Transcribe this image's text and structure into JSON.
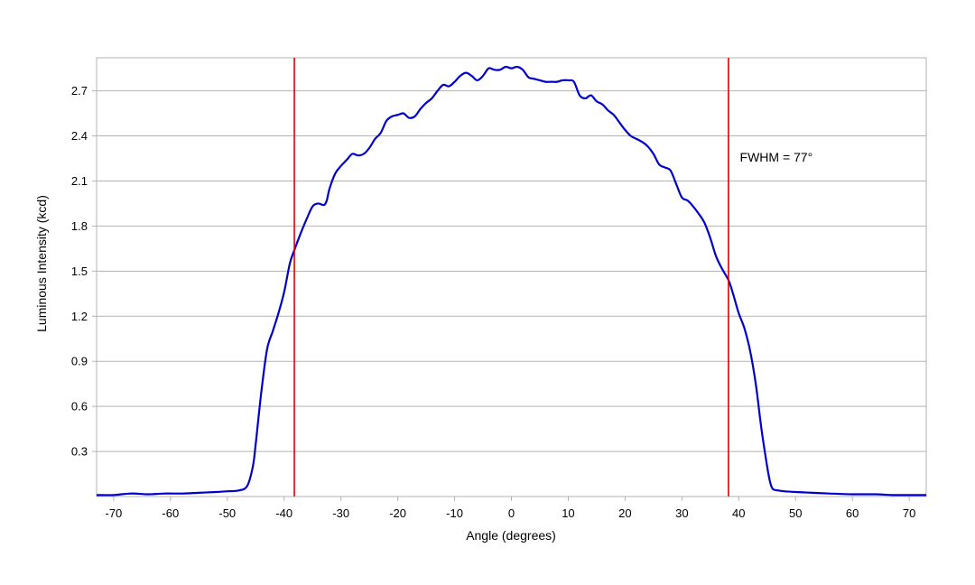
{
  "chart_data": {
    "type": "line",
    "title": "",
    "xlabel": "Angle (degrees)",
    "ylabel": "Luminous Intensity (kcd)",
    "xlim": [
      -73,
      73
    ],
    "ylim": [
      0,
      2.92
    ],
    "x_ticks": [
      -70,
      -60,
      -50,
      -40,
      -30,
      -20,
      -10,
      0,
      10,
      20,
      30,
      40,
      50,
      60,
      70
    ],
    "x_tick_labels": [
      "-70",
      "-60",
      "-50",
      "-40",
      "-30",
      "-20",
      "-10",
      "0",
      "10",
      "20",
      "30",
      "40",
      "50",
      "60",
      "70"
    ],
    "y_ticks": [
      0.3,
      0.6,
      0.9,
      1.2,
      1.5,
      1.8,
      2.1,
      2.4,
      2.7
    ],
    "y_tick_labels": [
      "0.3",
      "0.6",
      "0.9",
      "1.2",
      "1.5",
      "1.8",
      "2.1",
      "2.4",
      "2.7"
    ],
    "grid": "horizontal",
    "colors": {
      "series": "#0000cc",
      "markers": "#dd0000",
      "grid": "#b3b3b3",
      "frame": "#b3b3b3"
    },
    "series": [
      {
        "x": [
          -73,
          -70,
          -67,
          -64,
          -61,
          -58,
          -55,
          -52,
          -50,
          -48,
          -46.5,
          -45.5,
          -45,
          -44,
          -43,
          -42,
          -41,
          -40,
          -39,
          -38.2,
          -37,
          -36,
          -35,
          -34,
          -33,
          -32.5,
          -32,
          -31,
          -30,
          -29,
          -28,
          -27,
          -26,
          -25,
          -24,
          -23,
          -22,
          -21,
          -20,
          -19,
          -18,
          -17,
          -16,
          -15,
          -14,
          -13,
          -12,
          -11,
          -10,
          -9,
          -8,
          -7,
          -6,
          -5,
          -4,
          -3,
          -2,
          -1,
          0,
          1,
          2,
          3,
          4,
          5,
          6,
          7,
          8,
          9,
          10,
          11,
          12,
          13,
          14,
          15,
          16,
          17,
          18,
          19,
          20,
          21,
          22,
          23,
          24,
          25,
          26,
          27,
          28,
          29,
          30,
          31,
          32,
          33,
          34,
          35,
          36,
          37,
          38.2,
          39,
          40,
          41,
          42,
          43,
          44,
          45,
          45.5,
          46,
          47,
          48,
          50,
          53,
          56,
          60,
          64,
          67,
          70,
          73
        ],
        "y": [
          0.01,
          0.01,
          0.02,
          0.015,
          0.02,
          0.02,
          0.025,
          0.03,
          0.035,
          0.04,
          0.07,
          0.2,
          0.35,
          0.7,
          0.98,
          1.1,
          1.22,
          1.36,
          1.55,
          1.64,
          1.76,
          1.85,
          1.93,
          1.95,
          1.94,
          1.97,
          2.05,
          2.15,
          2.2,
          2.24,
          2.28,
          2.27,
          2.28,
          2.32,
          2.38,
          2.42,
          2.5,
          2.53,
          2.54,
          2.55,
          2.52,
          2.53,
          2.58,
          2.62,
          2.65,
          2.7,
          2.74,
          2.73,
          2.76,
          2.8,
          2.82,
          2.8,
          2.77,
          2.8,
          2.85,
          2.84,
          2.84,
          2.86,
          2.85,
          2.86,
          2.84,
          2.79,
          2.78,
          2.77,
          2.76,
          2.76,
          2.76,
          2.77,
          2.77,
          2.76,
          2.67,
          2.65,
          2.67,
          2.63,
          2.61,
          2.57,
          2.54,
          2.49,
          2.44,
          2.4,
          2.38,
          2.36,
          2.33,
          2.28,
          2.21,
          2.19,
          2.17,
          2.08,
          1.99,
          1.97,
          1.93,
          1.88,
          1.82,
          1.72,
          1.6,
          1.52,
          1.44,
          1.35,
          1.22,
          1.12,
          0.97,
          0.75,
          0.45,
          0.2,
          0.1,
          0.05,
          0.04,
          0.035,
          0.03,
          0.025,
          0.02,
          0.015,
          0.015,
          0.01,
          0.01,
          0.01
        ]
      }
    ],
    "vertical_markers": [
      -38.2,
      38.2
    ],
    "annotations": [
      {
        "text": "FWHM = 77°",
        "x": 40.2,
        "y": 2.23
      }
    ]
  }
}
